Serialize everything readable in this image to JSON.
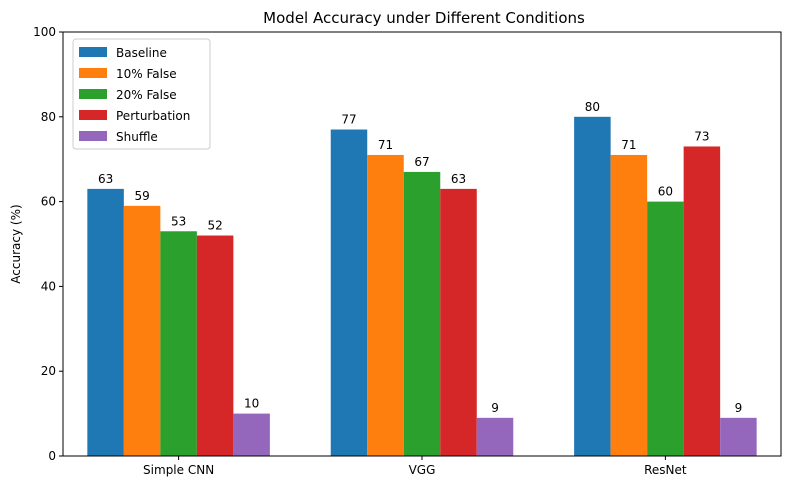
{
  "chart_data": {
    "type": "bar",
    "title": "Model Accuracy under Different Conditions",
    "xlabel": "",
    "ylabel": "Accuracy (%)",
    "ylim": [
      0,
      100
    ],
    "yticks": [
      "0",
      "20",
      "40",
      "60",
      "80",
      "100"
    ],
    "categories": [
      "Simple CNN",
      "VGG",
      "ResNet"
    ],
    "series": [
      {
        "name": "Baseline",
        "color": "#1f77b4",
        "values": [
          63,
          77,
          80
        ]
      },
      {
        "name": "10% False",
        "color": "#ff7f0e",
        "values": [
          59,
          71,
          71
        ]
      },
      {
        "name": "20% False",
        "color": "#2ca02c",
        "values": [
          53,
          67,
          60
        ]
      },
      {
        "name": "Perturbation",
        "color": "#d62728",
        "values": [
          52,
          63,
          73
        ]
      },
      {
        "name": "Shuffle",
        "color": "#9467bd",
        "values": [
          10,
          9,
          9
        ]
      }
    ],
    "grid": false,
    "legend": "top-left",
    "data_labels": true
  }
}
